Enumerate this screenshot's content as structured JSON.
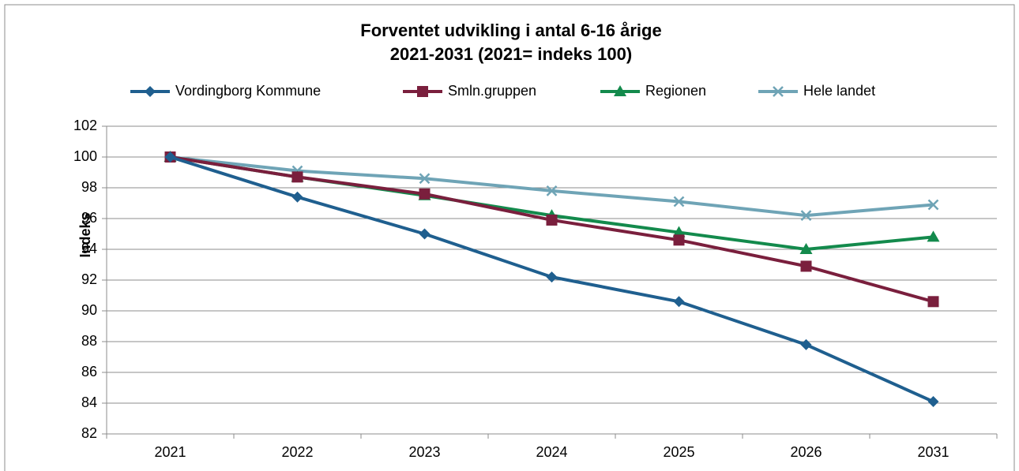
{
  "chart_data": {
    "type": "line",
    "title": "Forventet udvikling i antal 6-16 årige",
    "subtitle": "2021-2031 (2021= indeks 100)",
    "y_label": "Indeks",
    "categories": [
      "2021",
      "2022",
      "2023",
      "2024",
      "2025",
      "2026",
      "2031"
    ],
    "series": [
      {
        "name": "Vordingborg Kommune",
        "color": "#1f5f8f",
        "marker": "diamond",
        "values": [
          100,
          97.4,
          95.0,
          92.2,
          90.6,
          87.8,
          84.1
        ]
      },
      {
        "name": "Smln.gruppen",
        "color": "#7a1f3d",
        "marker": "square",
        "values": [
          100,
          98.7,
          97.6,
          95.9,
          94.6,
          92.9,
          90.6
        ]
      },
      {
        "name": "Regionen",
        "color": "#138a4c",
        "marker": "triangle",
        "values": [
          100,
          98.7,
          97.5,
          96.2,
          95.1,
          94.0,
          94.8
        ]
      },
      {
        "name": "Hele landet",
        "color": "#6fa4b6",
        "marker": "x",
        "values": [
          100,
          99.1,
          98.6,
          97.8,
          97.1,
          96.2,
          96.9
        ]
      }
    ],
    "ylim": [
      82,
      102
    ],
    "yticks": [
      82,
      84,
      86,
      88,
      90,
      92,
      94,
      96,
      98,
      100,
      102
    ],
    "grid": true,
    "legend": "top"
  }
}
